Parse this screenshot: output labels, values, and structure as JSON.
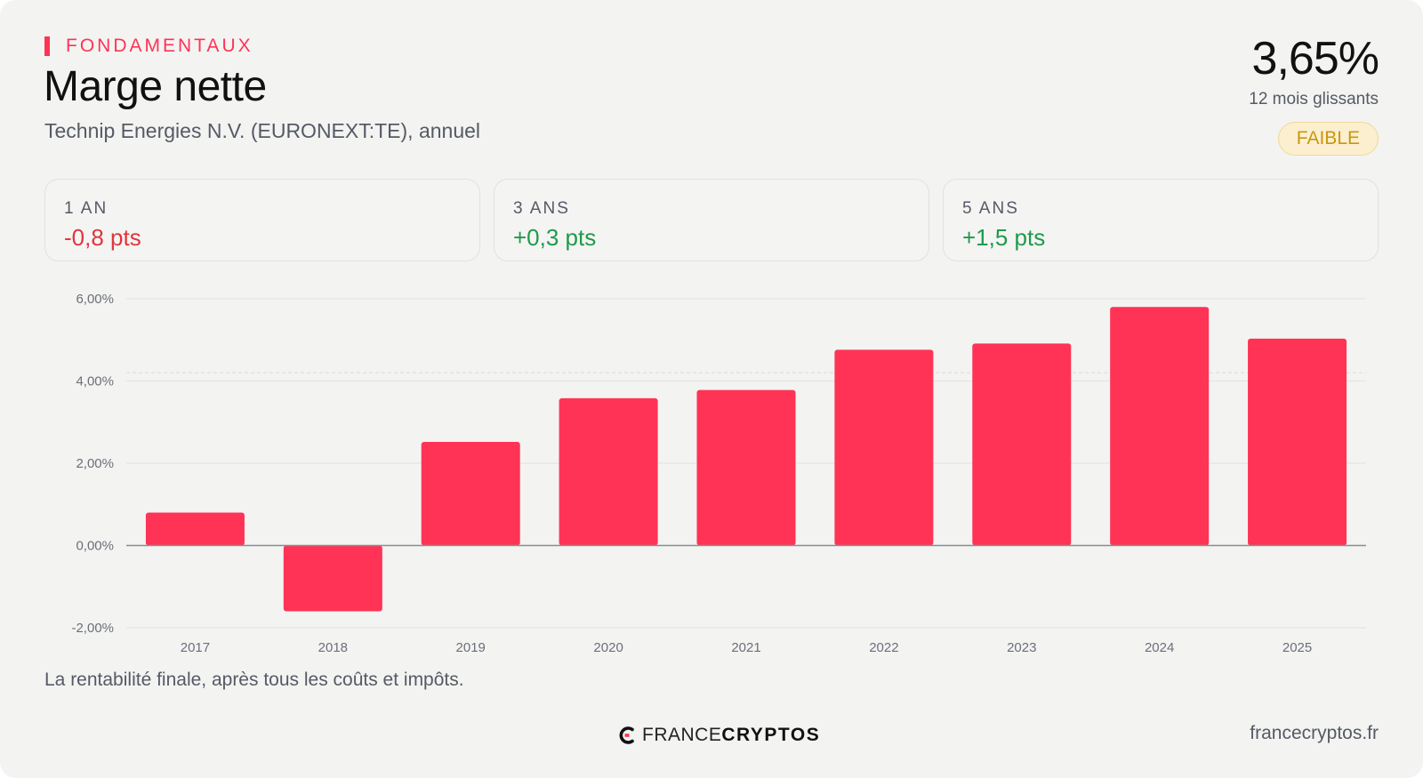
{
  "header": {
    "kicker": "FONDAMENTAUX",
    "title": "Marge nette",
    "subtitle": "Technip Energies N.V. (EURONEXT:TE), annuel"
  },
  "headline": {
    "value": "3,65%",
    "sub": "12 mois glissants",
    "badge": "FAIBLE"
  },
  "stats": [
    {
      "label": "1 AN",
      "value": "-0,8 pts",
      "tone": "negative"
    },
    {
      "label": "3 ANS",
      "value": "+0,3 pts",
      "tone": "positive"
    },
    {
      "label": "5 ANS",
      "value": "+1,5 pts",
      "tone": "positive"
    }
  ],
  "chart_data": {
    "type": "bar",
    "categories": [
      "2017",
      "2018",
      "2019",
      "2020",
      "2021",
      "2022",
      "2023",
      "2024",
      "2025"
    ],
    "values": [
      0.8,
      -1.6,
      2.52,
      3.58,
      3.78,
      4.76,
      4.91,
      5.8,
      5.03
    ],
    "ylim": [
      -2,
      6
    ],
    "yticks": [
      6,
      4,
      2,
      0,
      -2
    ],
    "ytick_labels": [
      "6,00%",
      "4,00%",
      "2,00%",
      "0,00%",
      "-2,00%"
    ],
    "reference_line": 4.2,
    "grid": true,
    "bar_color": "#ff3355"
  },
  "caption": "La rentabilité finale, après tous les coûts et impôts.",
  "footer": {
    "logo_a": "FRANCE",
    "logo_b": "CRYPTOS",
    "site": "francecryptos.fr"
  },
  "colors": {
    "accent": "#ff3355",
    "negative": "#e0353d",
    "positive": "#1f9a4a",
    "badge": "#c9970c"
  }
}
